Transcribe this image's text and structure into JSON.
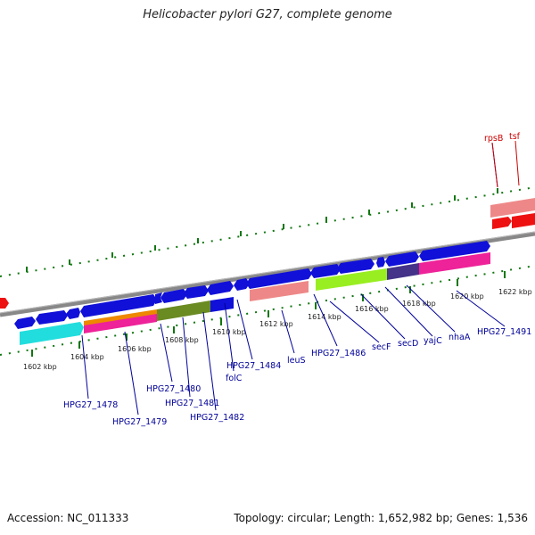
{
  "title": "Helicobacter pylori G27, complete genome",
  "footer": {
    "accession": "Accession: NC_011333",
    "topology": "Topology: circular; Length: 1,652,982 bp; Genes: 1,536"
  },
  "kbp_labels": [
    "1602 kbp",
    "1604 kbp",
    "1606 kbp",
    "1608 kbp",
    "1610 kbp",
    "1612 kbp",
    "1614 kbp",
    "1616 kbp",
    "1618 kbp",
    "1620 kbp",
    "1622 kbp"
  ],
  "gene_labels": {
    "rpsB": "rpsB",
    "tsf": "tsf",
    "HPG27_1478": "HPG27_1478",
    "HPG27_1479": "HPG27_1479",
    "HPG27_1480": "HPG27_1480",
    "HPG27_1481": "HPG27_1481",
    "HPG27_1482": "HPG27_1482",
    "folC": "folC",
    "HPG27_1484": "HPG27_1484",
    "leuS": "leuS",
    "HPG27_1486": "HPG27_1486",
    "secF": "secF",
    "secD": "secD",
    "yajC": "yajC",
    "nhaA": "nhaA",
    "HPG27_1491": "HPG27_1491"
  },
  "colors": {
    "forward_gene": "#1010d8",
    "reverse_gene": "#ee1111",
    "backbone": "#888888",
    "ticks": "#117711",
    "label": "#000099",
    "label_red": "#cc0000"
  }
}
